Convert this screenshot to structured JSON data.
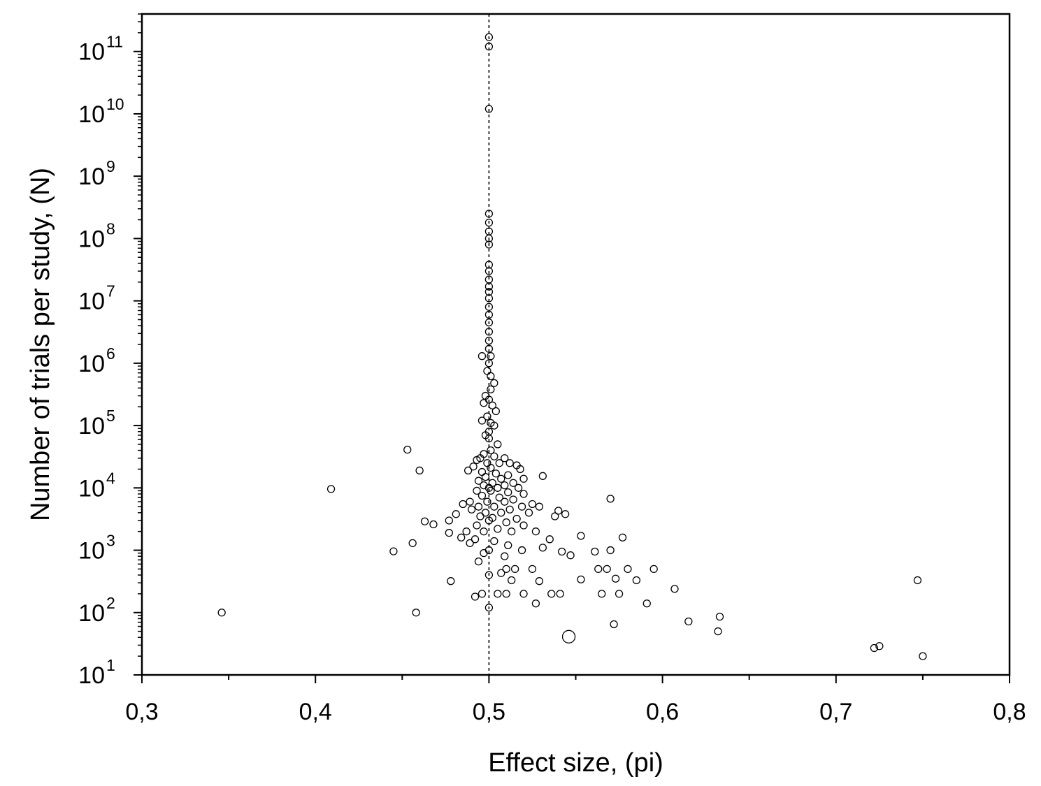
{
  "chart_data": {
    "type": "scatter",
    "xlabel": "Effect size, (pi)",
    "ylabel": "Number of trials per study, (N)",
    "xlim": [
      0.3,
      0.8
    ],
    "ylim": [
      10,
      400000000000
    ],
    "yscale": "log",
    "grid": false,
    "legend": "none",
    "reference_line": {
      "x": 0.5,
      "style": "dotted"
    },
    "xticks": [
      {
        "value": 0.3,
        "label": "0,3"
      },
      {
        "value": 0.4,
        "label": "0,4"
      },
      {
        "value": 0.5,
        "label": "0,5"
      },
      {
        "value": 0.6,
        "label": "0,6"
      },
      {
        "value": 0.7,
        "label": "0,7"
      },
      {
        "value": 0.8,
        "label": "0,8"
      }
    ],
    "yticks": [
      {
        "value": 10,
        "base": "10",
        "exp": "1"
      },
      {
        "value": 100,
        "base": "10",
        "exp": "2"
      },
      {
        "value": 1000,
        "base": "10",
        "exp": "3"
      },
      {
        "value": 10000,
        "base": "10",
        "exp": "4"
      },
      {
        "value": 100000,
        "base": "10",
        "exp": "5"
      },
      {
        "value": 1000000,
        "base": "10",
        "exp": "6"
      },
      {
        "value": 10000000,
        "base": "10",
        "exp": "7"
      },
      {
        "value": 100000000,
        "base": "10",
        "exp": "8"
      },
      {
        "value": 1000000000,
        "base": "10",
        "exp": "9"
      },
      {
        "value": 10000000000,
        "base": "10",
        "exp": "10"
      },
      {
        "value": 100000000000,
        "base": "10",
        "exp": "11"
      }
    ],
    "points": [
      [
        0.5,
        170000000000
      ],
      [
        0.5,
        120000000000
      ],
      [
        0.5,
        12000000000
      ],
      [
        0.5,
        250000000
      ],
      [
        0.5,
        180000000
      ],
      [
        0.5,
        130000000
      ],
      [
        0.5,
        100000000
      ],
      [
        0.5,
        80000000
      ],
      [
        0.5,
        38000000
      ],
      [
        0.5,
        30000000
      ],
      [
        0.5,
        22000000
      ],
      [
        0.5,
        17000000
      ],
      [
        0.5,
        14000000
      ],
      [
        0.5,
        11000000
      ],
      [
        0.5,
        8000000
      ],
      [
        0.5,
        6000000
      ],
      [
        0.5,
        4500000
      ],
      [
        0.5,
        3200000
      ],
      [
        0.5,
        2300000
      ],
      [
        0.5,
        1700000
      ],
      [
        0.501,
        1300000
      ],
      [
        0.496,
        1300000
      ],
      [
        0.5,
        1000000
      ],
      [
        0.499,
        750000
      ],
      [
        0.501,
        620000
      ],
      [
        0.503,
        480000
      ],
      [
        0.501,
        380000
      ],
      [
        0.498,
        300000
      ],
      [
        0.5,
        260000
      ],
      [
        0.497,
        230000
      ],
      [
        0.502,
        210000
      ],
      [
        0.504,
        170000
      ],
      [
        0.499,
        140000
      ],
      [
        0.496,
        120000
      ],
      [
        0.501,
        110000
      ],
      [
        0.503,
        100000
      ],
      [
        0.5,
        80000
      ],
      [
        0.498,
        70000
      ],
      [
        0.5,
        62000
      ],
      [
        0.505,
        50000
      ],
      [
        0.501,
        40000
      ],
      [
        0.497,
        35000
      ],
      [
        0.503,
        32000
      ],
      [
        0.495,
        30000
      ],
      [
        0.509,
        30000
      ],
      [
        0.493,
        28000
      ],
      [
        0.499,
        25000
      ],
      [
        0.506,
        25000
      ],
      [
        0.512,
        25000
      ],
      [
        0.516,
        23000
      ],
      [
        0.491,
        22000
      ],
      [
        0.501,
        21000
      ],
      [
        0.518,
        20000
      ],
      [
        0.488,
        19000
      ],
      [
        0.496,
        18000
      ],
      [
        0.504,
        17000
      ],
      [
        0.511,
        16000
      ],
      [
        0.498,
        15000
      ],
      [
        0.507,
        14000
      ],
      [
        0.52,
        14000
      ],
      [
        0.494,
        13000
      ],
      [
        0.502,
        12000
      ],
      [
        0.514,
        12000
      ],
      [
        0.497,
        11000
      ],
      [
        0.509,
        11000
      ],
      [
        0.5,
        10000
      ],
      [
        0.505,
        10000
      ],
      [
        0.517,
        10000
      ],
      [
        0.493,
        9000
      ],
      [
        0.501,
        9000
      ],
      [
        0.511,
        8500
      ],
      [
        0.52,
        8000
      ],
      [
        0.496,
        7500
      ],
      [
        0.506,
        7000
      ],
      [
        0.514,
        6500
      ],
      [
        0.489,
        6000
      ],
      [
        0.499,
        6000
      ],
      [
        0.509,
        6000
      ],
      [
        0.525,
        5500
      ],
      [
        0.485,
        5500
      ],
      [
        0.494,
        5000
      ],
      [
        0.503,
        5000
      ],
      [
        0.519,
        5000
      ],
      [
        0.529,
        5000
      ],
      [
        0.49,
        4500
      ],
      [
        0.512,
        4500
      ],
      [
        0.498,
        4000
      ],
      [
        0.507,
        4000
      ],
      [
        0.523,
        4000
      ],
      [
        0.481,
        3800
      ],
      [
        0.495,
        3500
      ],
      [
        0.502,
        3300
      ],
      [
        0.516,
        3200
      ],
      [
        0.477,
        3000
      ],
      [
        0.5,
        3000
      ],
      [
        0.51,
        2800
      ],
      [
        0.493,
        2500
      ],
      [
        0.52,
        2500
      ],
      [
        0.505,
        2200
      ],
      [
        0.487,
        2000
      ],
      [
        0.497,
        2000
      ],
      [
        0.513,
        2000
      ],
      [
        0.527,
        2000
      ],
      [
        0.477,
        1900
      ],
      [
        0.484,
        1600
      ],
      [
        0.492,
        1500
      ],
      [
        0.503,
        1400
      ],
      [
        0.511,
        1200
      ],
      [
        0.489,
        1300
      ],
      [
        0.5,
        1000
      ],
      [
        0.497,
        900
      ],
      [
        0.509,
        800
      ],
      [
        0.519,
        1000
      ],
      [
        0.453,
        41000
      ],
      [
        0.46,
        19000
      ],
      [
        0.409,
        9600
      ],
      [
        0.463,
        2900
      ],
      [
        0.468,
        2600
      ],
      [
        0.456,
        1300
      ],
      [
        0.445,
        960
      ],
      [
        0.478,
        320
      ],
      [
        0.458,
        100
      ],
      [
        0.346,
        100
      ],
      [
        0.531,
        15500
      ],
      [
        0.57,
        6700
      ],
      [
        0.54,
        4300
      ],
      [
        0.544,
        3800
      ],
      [
        0.538,
        3500
      ],
      [
        0.535,
        1500
      ],
      [
        0.553,
        1700
      ],
      [
        0.577,
        1600
      ],
      [
        0.531,
        1100
      ],
      [
        0.542,
        950
      ],
      [
        0.547,
        830
      ],
      [
        0.561,
        950
      ],
      [
        0.57,
        1000
      ],
      [
        0.494,
        660
      ],
      [
        0.51,
        500
      ],
      [
        0.515,
        500
      ],
      [
        0.525,
        500
      ],
      [
        0.563,
        500
      ],
      [
        0.568,
        500
      ],
      [
        0.58,
        500
      ],
      [
        0.595,
        500
      ],
      [
        0.507,
        430
      ],
      [
        0.5,
        400
      ],
      [
        0.513,
        330
      ],
      [
        0.529,
        320
      ],
      [
        0.553,
        340
      ],
      [
        0.573,
        350
      ],
      [
        0.585,
        330
      ],
      [
        0.496,
        200
      ],
      [
        0.492,
        180
      ],
      [
        0.505,
        200
      ],
      [
        0.51,
        200
      ],
      [
        0.52,
        200
      ],
      [
        0.536,
        200
      ],
      [
        0.541,
        200
      ],
      [
        0.565,
        200
      ],
      [
        0.575,
        200
      ],
      [
        0.607,
        240
      ],
      [
        0.527,
        140
      ],
      [
        0.591,
        140
      ],
      [
        0.5,
        120
      ],
      [
        0.546,
        41
      ],
      [
        0.572,
        65
      ],
      [
        0.615,
        72
      ],
      [
        0.633,
        86
      ],
      [
        0.632,
        50
      ],
      [
        0.722,
        27
      ],
      [
        0.725,
        29
      ],
      [
        0.747,
        330
      ],
      [
        0.75,
        20
      ]
    ]
  }
}
